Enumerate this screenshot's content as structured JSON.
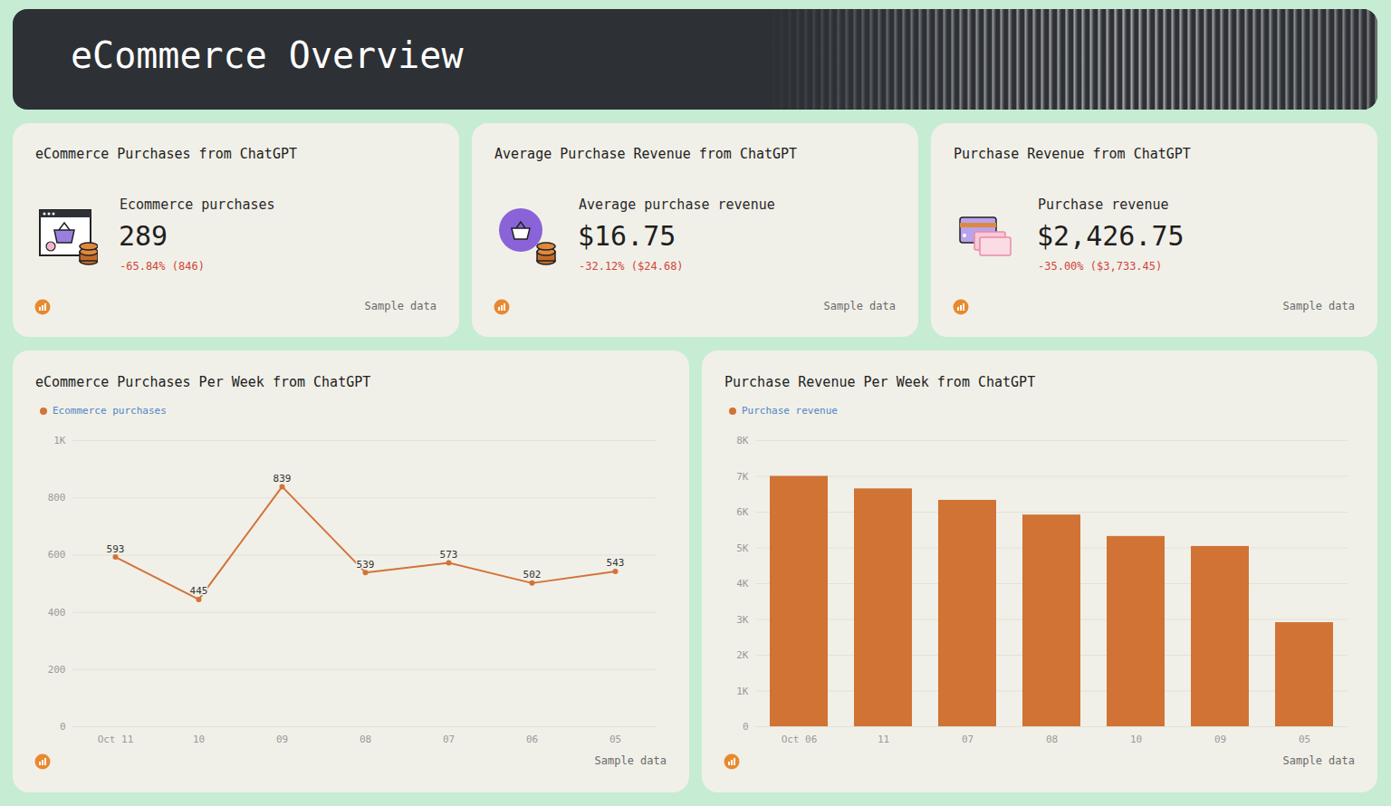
{
  "header": {
    "title": "eCommerce Overview"
  },
  "cards": [
    {
      "title": "eCommerce Purchases from ChatGPT",
      "label": "Ecommerce purchases",
      "value": "289",
      "change": "-65.84% (846)",
      "note": "Sample data"
    },
    {
      "title": "Average Purchase Revenue from ChatGPT",
      "label": "Average purchase revenue",
      "value": "$16.75",
      "change": "-32.12% ($24.68)",
      "note": "Sample data"
    },
    {
      "title": "Purchase Revenue from ChatGPT",
      "label": "Purchase revenue",
      "value": "$2,426.75",
      "change": "-35.00% ($3,733.45)",
      "note": "Sample data"
    }
  ],
  "chart_data": [
    {
      "type": "line",
      "title": "eCommerce Purchases Per Week from ChatGPT",
      "categories": [
        "Oct 11",
        "10",
        "09",
        "08",
        "07",
        "06",
        "05"
      ],
      "series": [
        {
          "name": "Ecommerce purchases",
          "color": "#d2733a",
          "values": [
            593,
            445,
            839,
            539,
            573,
            502,
            543
          ]
        }
      ],
      "ylim": [
        0,
        1000
      ],
      "yticks": [
        0,
        200,
        400,
        600,
        800,
        {
          "value": 1000,
          "label": "1K"
        }
      ],
      "grid": true,
      "legend": "top-left",
      "data_labels": true,
      "marker": "circle",
      "caption": "Sample data"
    },
    {
      "type": "bar",
      "title": "Purchase Revenue Per Week from ChatGPT",
      "categories": [
        "Oct 06",
        "11",
        "07",
        "08",
        "10",
        "09",
        "05"
      ],
      "series": [
        {
          "name": "Purchase revenue",
          "color": "#d07335",
          "values": [
            7000,
            6650,
            6330,
            5920,
            5320,
            5040,
            2910
          ]
        }
      ],
      "ylim": [
        0,
        8000
      ],
      "yticks": [
        0,
        {
          "value": 1000,
          "label": "1K"
        },
        {
          "value": 2000,
          "label": "2K"
        },
        {
          "value": 3000,
          "label": "3K"
        },
        {
          "value": 4000,
          "label": "4K"
        },
        {
          "value": 5000,
          "label": "5K"
        },
        {
          "value": 6000,
          "label": "6K"
        },
        {
          "value": 7000,
          "label": "7K"
        },
        {
          "value": 8000,
          "label": "8K"
        }
      ],
      "grid": true,
      "legend": "top-left",
      "data_labels": false,
      "caption": "Sample data"
    }
  ]
}
